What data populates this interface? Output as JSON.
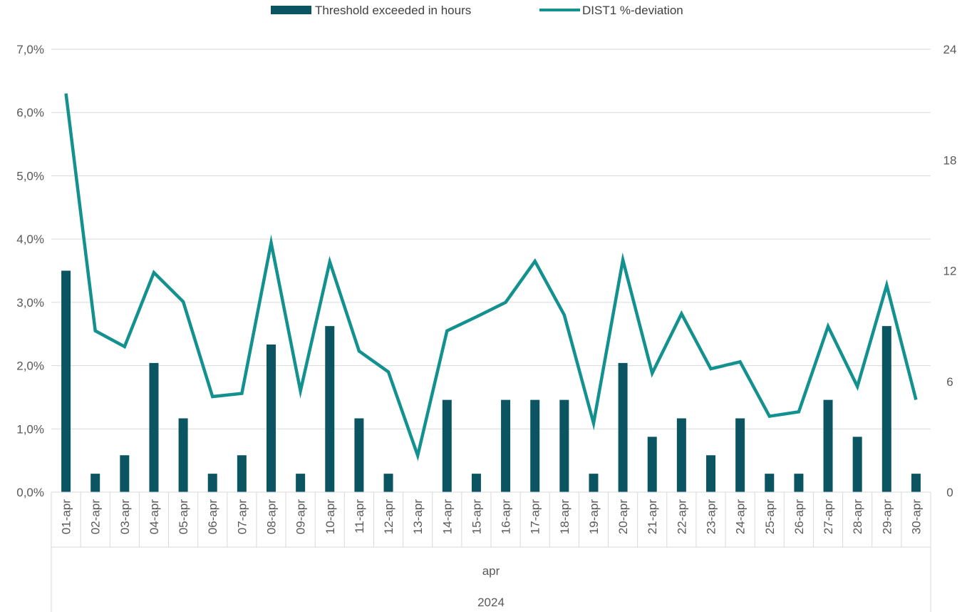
{
  "chart_data": {
    "type": "bar",
    "legend": {
      "position": "top",
      "entries": [
        {
          "label": "Threshold exceeded in hours",
          "kind": "bar"
        },
        {
          "label": "DIST1 %-deviation",
          "kind": "line"
        }
      ]
    },
    "categories": [
      "01-apr",
      "02-apr",
      "03-apr",
      "04-apr",
      "05-apr",
      "06-apr",
      "07-apr",
      "08-apr",
      "09-apr",
      "10-apr",
      "11-apr",
      "12-apr",
      "13-apr",
      "14-apr",
      "15-apr",
      "16-apr",
      "17-apr",
      "18-apr",
      "19-apr",
      "20-apr",
      "21-apr",
      "22-apr",
      "23-apr",
      "24-apr",
      "25-apr",
      "26-apr",
      "27-apr",
      "28-apr",
      "29-apr",
      "30-apr"
    ],
    "group_labels": {
      "month": "apr",
      "year": "2024"
    },
    "series": [
      {
        "name": "Threshold exceeded in hours",
        "type": "bar",
        "axis": "right",
        "color": "#0b5563",
        "values": [
          12,
          1,
          2,
          7,
          4,
          1,
          2,
          8,
          1,
          9,
          4,
          1,
          0,
          5,
          1,
          5,
          5,
          5,
          1,
          7,
          3,
          4,
          2,
          4,
          1,
          1,
          5,
          3,
          9,
          1
        ]
      },
      {
        "name": "DIST1 %-deviation",
        "type": "line",
        "axis": "left",
        "color": "#12918f",
        "values": [
          6.3,
          2.55,
          2.3,
          3.47,
          3.01,
          1.51,
          1.56,
          3.94,
          1.6,
          3.64,
          2.23,
          1.9,
          0.58,
          2.55,
          2.77,
          3.0,
          3.65,
          2.8,
          1.09,
          3.67,
          1.88,
          2.82,
          1.95,
          2.06,
          1.2,
          1.27,
          2.62,
          1.67,
          3.27,
          1.46
        ]
      }
    ],
    "y_left": {
      "min": 0,
      "max": 7,
      "ticks": [
        "0,0%",
        "1,0%",
        "2,0%",
        "3,0%",
        "4,0%",
        "5,0%",
        "6,0%",
        "7,0%"
      ]
    },
    "y_right": {
      "min": 0,
      "max": 24,
      "ticks": [
        "0",
        "6",
        "12",
        "18",
        "24"
      ]
    },
    "grid": true
  }
}
